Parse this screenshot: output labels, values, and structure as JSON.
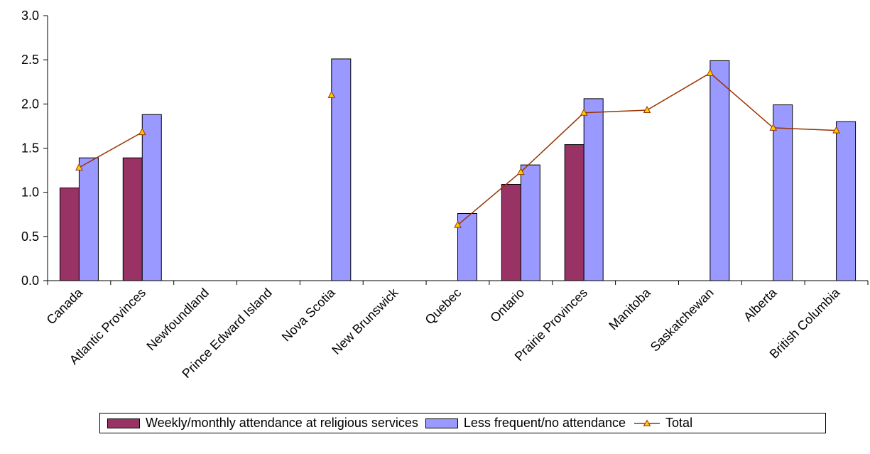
{
  "chart_data": {
    "type": "bar",
    "categories": [
      "Canada",
      "Atlantic Provinces",
      "Newfoundland",
      "Prince Edward Island",
      "Nova Scotia",
      "New Brunswick",
      "Quebec",
      "Ontario",
      "Prairie Provinces",
      "Manitoba",
      "Saskatchewan",
      "Alberta",
      "British Columbia"
    ],
    "ylim": [
      0,
      3.0
    ],
    "yticks": [
      "0.0",
      "0.5",
      "1.0",
      "1.5",
      "2.0",
      "2.5",
      "3.0"
    ],
    "grid": false,
    "legend_position": "bottom",
    "series": [
      {
        "name": "Weekly/monthly attendance at religious services",
        "kind": "bar",
        "color": "#993366",
        "values": [
          1.05,
          1.39,
          null,
          null,
          null,
          null,
          null,
          1.09,
          1.54,
          null,
          null,
          null,
          null
        ]
      },
      {
        "name": "Less frequent/no attendance",
        "kind": "bar",
        "color": "#9999ff",
        "values": [
          1.39,
          1.88,
          null,
          null,
          2.51,
          null,
          0.76,
          1.31,
          2.06,
          null,
          2.49,
          1.99,
          1.8
        ]
      },
      {
        "name": "Total",
        "kind": "line",
        "color": "#993300",
        "marker_color": "#ffcc00",
        "values": [
          1.28,
          1.68,
          null,
          null,
          2.1,
          null,
          0.63,
          1.23,
          1.9,
          1.93,
          2.35,
          1.73,
          1.7
        ]
      }
    ]
  }
}
